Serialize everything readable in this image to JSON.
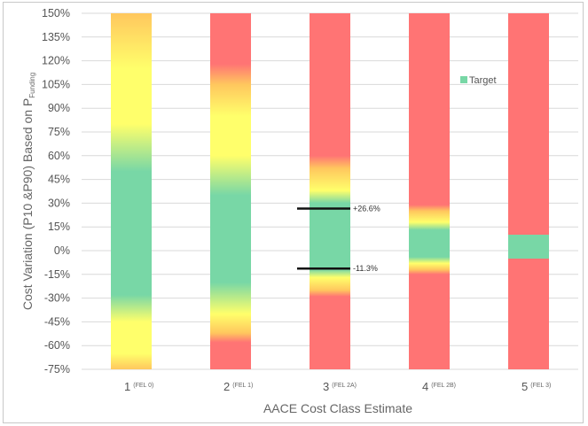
{
  "chart_data": {
    "type": "bar",
    "xlabel": "AACE Cost Class Estimate",
    "ylabel_main": "Cost Variation (P10 &P90) Based on P",
    "ylabel_subscript": "Funding",
    "ylim": [
      -75,
      150
    ],
    "ytick_step": 15,
    "yticks": [
      "150%",
      "135%",
      "120%",
      "105%",
      "90%",
      "75%",
      "60%",
      "45%",
      "30%",
      "15%",
      "0%",
      "-15%",
      "-30%",
      "-45%",
      "-60%",
      "-75%"
    ],
    "categories": [
      {
        "num": "1",
        "sub": "(FEL 0)"
      },
      {
        "num": "2",
        "sub": "(FEL 1)"
      },
      {
        "num": "3",
        "sub": "(FEL 2A)"
      },
      {
        "num": "4",
        "sub": "(FEL 2B)"
      },
      {
        "num": "5",
        "sub": "(FEL 3)"
      }
    ],
    "colors": {
      "green": "#78d7a6",
      "yellow": "#ffff6b",
      "orange": "#ffc75e",
      "red": "#ff7474"
    },
    "bands": [
      [
        {
          "v": -75,
          "c": "orange"
        },
        {
          "v": -65,
          "c": "yellow"
        },
        {
          "v": -45,
          "c": "yellow"
        },
        {
          "v": -28,
          "c": "green"
        },
        {
          "v": 50,
          "c": "green"
        },
        {
          "v": 80,
          "c": "yellow"
        },
        {
          "v": 115,
          "c": "yellow"
        },
        {
          "v": 150,
          "c": "orange"
        }
      ],
      [
        {
          "v": -75,
          "c": "red"
        },
        {
          "v": -58,
          "c": "red"
        },
        {
          "v": -52,
          "c": "orange"
        },
        {
          "v": -40,
          "c": "yellow"
        },
        {
          "v": -20,
          "c": "green"
        },
        {
          "v": 35,
          "c": "green"
        },
        {
          "v": 60,
          "c": "yellow"
        },
        {
          "v": 85,
          "c": "yellow"
        },
        {
          "v": 105,
          "c": "orange"
        },
        {
          "v": 118,
          "c": "red"
        },
        {
          "v": 150,
          "c": "red"
        }
      ],
      [
        {
          "v": -75,
          "c": "red"
        },
        {
          "v": -29,
          "c": "red"
        },
        {
          "v": -25,
          "c": "orange"
        },
        {
          "v": -17,
          "c": "yellow"
        },
        {
          "v": -12,
          "c": "green"
        },
        {
          "v": 30,
          "c": "green"
        },
        {
          "v": 38,
          "c": "yellow"
        },
        {
          "v": 52,
          "c": "orange"
        },
        {
          "v": 60,
          "c": "red"
        },
        {
          "v": 150,
          "c": "red"
        }
      ],
      [
        {
          "v": -75,
          "c": "red"
        },
        {
          "v": -15,
          "c": "red"
        },
        {
          "v": -12,
          "c": "orange"
        },
        {
          "v": -8,
          "c": "yellow"
        },
        {
          "v": -4,
          "c": "green"
        },
        {
          "v": 13,
          "c": "green"
        },
        {
          "v": 18,
          "c": "yellow"
        },
        {
          "v": 25,
          "c": "orange"
        },
        {
          "v": 29,
          "c": "red"
        },
        {
          "v": 150,
          "c": "red"
        }
      ],
      [
        {
          "v": -75,
          "c": "red"
        },
        {
          "v": -5,
          "c": "red"
        },
        {
          "v": -5,
          "c": "green"
        },
        {
          "v": 10,
          "c": "green"
        },
        {
          "v": 10,
          "c": "red"
        },
        {
          "v": 150,
          "c": "red"
        }
      ]
    ],
    "annotations": [
      {
        "category": 2,
        "value": 26.6,
        "label": "+26.6%"
      },
      {
        "category": 2,
        "value": -11.3,
        "label": "-11.3%"
      }
    ],
    "legend": {
      "label": "Target",
      "color": "#78d7a6",
      "position": "upper-right of plot"
    }
  }
}
